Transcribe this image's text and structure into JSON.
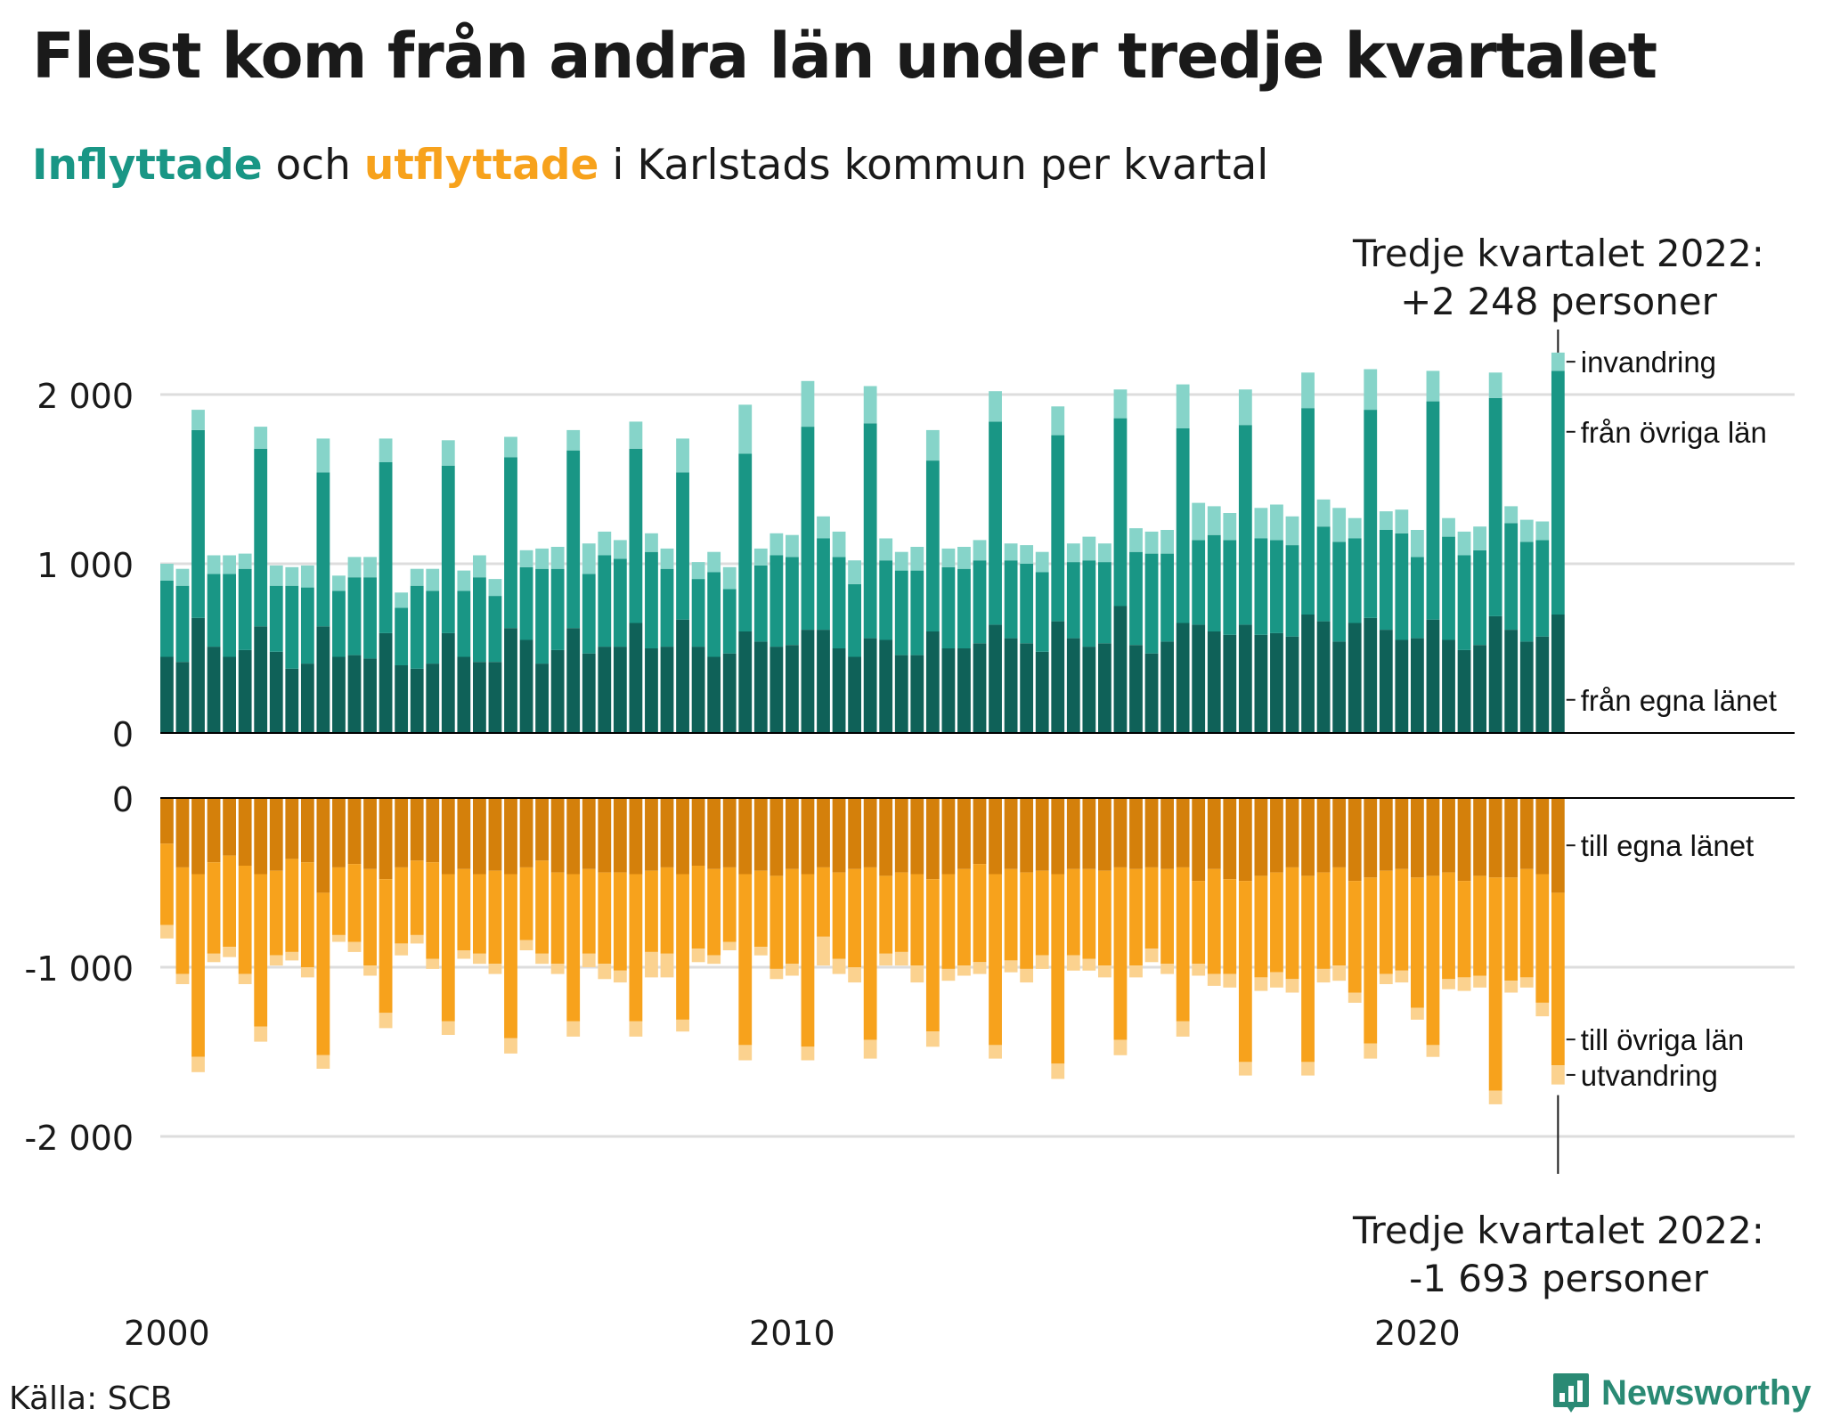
{
  "title": "Flest kom från andra län under tredje kvartalet",
  "subtitle": {
    "part1": "Inflyttade",
    "part2": " och ",
    "part3": "utflyttade",
    "part4": " i Karlstads kommun per kvartal"
  },
  "colors": {
    "in_egna": "#0f6158",
    "in_ovriga": "#199685",
    "in_invandring": "#86d4c9",
    "ut_egna": "#d4800b",
    "ut_ovriga": "#f7a21c",
    "ut_utvandring": "#fbd28f",
    "accent_in": "#199685",
    "accent_ut": "#f7a21c",
    "grid": "#dddddd"
  },
  "annotations": {
    "top_line1": "Tredje kvartalet 2022:",
    "top_line2": "+2 248 personer",
    "bottom_line1": "Tredje kvartalet 2022:",
    "bottom_line2": "-1 693 personer"
  },
  "source": "Källa: SCB",
  "logo": {
    "name": "Newsworthy",
    "icon": "bar-chart-logo-icon"
  },
  "chart_data": {
    "type": "bar",
    "stacked": true,
    "x_unit": "kvartal",
    "x_start": "2000 Q1",
    "x_end": "2022 Q3",
    "xticks": [
      "2000",
      "2010",
      "2020"
    ],
    "panels": [
      {
        "name": "inflyttade",
        "ylim": [
          0,
          2250
        ],
        "yticks": [
          0,
          1000,
          2000
        ],
        "ytick_labels": [
          "0",
          "1 000",
          "2 000"
        ],
        "series": [
          {
            "name": "från egna länet",
            "values": [
              450,
              420,
              680,
              510,
              450,
              490,
              630,
              480,
              380,
              410,
              630,
              450,
              460,
              440,
              590,
              400,
              380,
              410,
              590,
              450,
              420,
              420,
              620,
              550,
              410,
              490,
              620,
              470,
              510,
              510,
              650,
              500,
              510,
              670,
              510,
              450,
              470,
              600,
              540,
              510,
              520,
              610,
              610,
              500,
              450,
              560,
              550,
              460,
              460,
              600,
              500,
              500,
              530,
              640,
              560,
              530,
              480,
              660,
              560,
              510,
              530,
              750,
              520,
              470,
              540,
              650,
              640,
              600,
              580,
              640,
              580,
              590,
              570,
              700,
              660,
              540,
              650,
              680,
              610,
              550,
              560,
              670,
              550,
              490,
              520,
              690,
              610,
              540,
              570,
              700
            ]
          },
          {
            "name": "från övriga län",
            "values": [
              450,
              450,
              1110,
              430,
              490,
              480,
              1050,
              390,
              490,
              450,
              910,
              390,
              460,
              480,
              1010,
              340,
              490,
              430,
              990,
              390,
              500,
              390,
              1010,
              430,
              560,
              480,
              1050,
              470,
              540,
              520,
              1030,
              570,
              460,
              870,
              400,
              500,
              380,
              1050,
              450,
              540,
              520,
              1200,
              540,
              540,
              430,
              1270,
              470,
              500,
              500,
              1010,
              480,
              470,
              490,
              1200,
              460,
              470,
              470,
              1100,
              450,
              510,
              480,
              1110,
              550,
              590,
              520,
              1150,
              500,
              570,
              560,
              1180,
              570,
              550,
              540,
              1220,
              560,
              590,
              500,
              1230,
              590,
              630,
              480,
              1290,
              610,
              560,
              560,
              1290,
              630,
              590,
              570,
              1440
            ]
          },
          {
            "name": "invandring",
            "values": [
              100,
              100,
              120,
              110,
              110,
              90,
              130,
              120,
              110,
              130,
              200,
              90,
              120,
              120,
              140,
              90,
              100,
              130,
              150,
              120,
              130,
              100,
              120,
              100,
              120,
              130,
              120,
              180,
              140,
              110,
              160,
              110,
              120,
              200,
              100,
              120,
              130,
              290,
              100,
              130,
              130,
              270,
              130,
              150,
              140,
              220,
              130,
              110,
              140,
              180,
              110,
              130,
              120,
              180,
              100,
              110,
              120,
              170,
              110,
              140,
              110,
              170,
              140,
              130,
              140,
              260,
              220,
              170,
              160,
              210,
              180,
              210,
              170,
              210,
              160,
              200,
              120,
              240,
              110,
              140,
              160,
              180,
              110,
              140,
              140,
              150,
              100,
              130,
              110,
              108
            ]
          }
        ]
      },
      {
        "name": "utflyttade",
        "ylim": [
          -2000,
          0
        ],
        "yticks": [
          0,
          -1000,
          -2000
        ],
        "ytick_labels": [
          "0",
          "-1 000",
          "-2 000"
        ],
        "series": [
          {
            "name": "till egna länet",
            "values": [
              -270,
              -410,
              -450,
              -380,
              -340,
              -400,
              -450,
              -430,
              -360,
              -380,
              -560,
              -410,
              -390,
              -420,
              -480,
              -410,
              -370,
              -380,
              -450,
              -420,
              -450,
              -430,
              -450,
              -410,
              -370,
              -440,
              -450,
              -420,
              -440,
              -440,
              -450,
              -430,
              -410,
              -450,
              -400,
              -420,
              -410,
              -450,
              -430,
              -460,
              -420,
              -450,
              -410,
              -440,
              -420,
              -410,
              -460,
              -440,
              -450,
              -480,
              -450,
              -420,
              -390,
              -450,
              -420,
              -440,
              -430,
              -450,
              -420,
              -420,
              -430,
              -410,
              -420,
              -410,
              -420,
              -410,
              -490,
              -420,
              -480,
              -490,
              -460,
              -440,
              -410,
              -460,
              -440,
              -410,
              -490,
              -470,
              -430,
              -420,
              -470,
              -460,
              -440,
              -490,
              -460,
              -470,
              -470,
              -420,
              -450,
              -560
            ]
          },
          {
            "name": "till övriga län",
            "values": [
              -480,
              -630,
              -1080,
              -540,
              -540,
              -640,
              -900,
              -500,
              -550,
              -620,
              -960,
              -400,
              -460,
              -570,
              -790,
              -450,
              -440,
              -570,
              -870,
              -480,
              -470,
              -550,
              -970,
              -430,
              -550,
              -540,
              -870,
              -500,
              -540,
              -580,
              -870,
              -480,
              -510,
              -860,
              -490,
              -510,
              -440,
              -1010,
              -450,
              -550,
              -560,
              -1020,
              -410,
              -510,
              -580,
              -1020,
              -460,
              -470,
              -540,
              -900,
              -560,
              -570,
              -580,
              -1010,
              -540,
              -570,
              -500,
              -1120,
              -510,
              -530,
              -560,
              -1020,
              -570,
              -480,
              -560,
              -910,
              -490,
              -620,
              -560,
              -1070,
              -600,
              -590,
              -660,
              -1100,
              -570,
              -580,
              -660,
              -980,
              -610,
              -600,
              -770,
              -1000,
              -630,
              -570,
              -590,
              -1260,
              -610,
              -640,
              -760,
              -1020
            ]
          },
          {
            "name": "utvandring",
            "values": [
              -80,
              -60,
              -90,
              -50,
              -60,
              -60,
              -90,
              -60,
              -50,
              -60,
              -80,
              -40,
              -60,
              -60,
              -90,
              -70,
              -50,
              -60,
              -80,
              -50,
              -60,
              -60,
              -90,
              -60,
              -60,
              -60,
              -90,
              -80,
              -90,
              -70,
              -90,
              -150,
              -140,
              -70,
              -80,
              -50,
              -50,
              -90,
              -50,
              -60,
              -70,
              -80,
              -170,
              -90,
              -90,
              -110,
              -70,
              -80,
              -100,
              -90,
              -70,
              -60,
              -70,
              -80,
              -70,
              -80,
              -80,
              -90,
              -90,
              -70,
              -70,
              -90,
              -70,
              -80,
              -60,
              -90,
              -70,
              -70,
              -80,
              -80,
              -80,
              -90,
              -80,
              -80,
              -80,
              -90,
              -60,
              -90,
              -60,
              -70,
              -70,
              -70,
              -60,
              -80,
              -70,
              -80,
              -70,
              -60,
              -80,
              -113
            ]
          }
        ]
      }
    ],
    "series_labels": {
      "invandring": "invandring",
      "fran_ovriga_lan": "från övriga län",
      "fran_egna_lanet": "från egna länet",
      "till_egna_lanet": "till egna länet",
      "till_ovriga_lan": "till övriga län",
      "utvandring": "utvandring"
    }
  }
}
